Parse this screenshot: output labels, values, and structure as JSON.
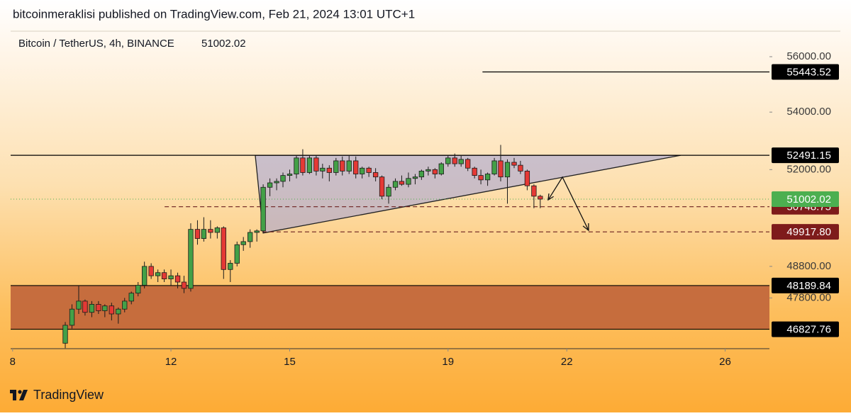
{
  "chart_data": {
    "type": "candlestick",
    "published": "bitcoinmeraklisi published on TradingView.com, Feb 21, 2024 13:01 UTC+1",
    "title": "Bitcoin / TetherUS, 4h, BINANCE",
    "brand": "TradingView",
    "log_scale": true,
    "up_color": "#43a047",
    "down_color": "#e53935",
    "xlim": [
      7.95,
      27.12
    ],
    "xticks": [
      8,
      12,
      15,
      19,
      22,
      26
    ],
    "ylim": [
      46234,
      56919
    ],
    "yticks": [
      {
        "value": 56000,
        "label": "56000.00"
      },
      {
        "value": 54000,
        "label": "54000.00"
      },
      {
        "value": 52000,
        "label": "52000.00"
      },
      {
        "value": 48800,
        "label": "48800.00"
      },
      {
        "value": 47800,
        "label": "47800.00"
      }
    ],
    "x": [
      9.33,
      9.5,
      9.67,
      9.83,
      10,
      10.17,
      10.33,
      10.5,
      10.67,
      10.83,
      11,
      11.17,
      11.33,
      11.5,
      11.67,
      11.83,
      12,
      12.17,
      12.33,
      12.5,
      12.67,
      12.83,
      13,
      13.17,
      13.33,
      13.5,
      13.67,
      13.83,
      14,
      14.17,
      14.33,
      14.5,
      14.67,
      14.83,
      15,
      15.17,
      15.33,
      15.5,
      15.67,
      15.83,
      16,
      16.17,
      16.33,
      16.5,
      16.67,
      16.83,
      17,
      17.17,
      17.33,
      17.5,
      17.67,
      17.83,
      18,
      18.17,
      18.33,
      18.5,
      18.67,
      18.83,
      19,
      19.17,
      19.33,
      19.5,
      19.67,
      19.83,
      20,
      20.17,
      20.33,
      20.5,
      20.67,
      20.83,
      21,
      21.17,
      21.33
    ],
    "open": [
      46400,
      46950,
      47450,
      47700,
      47350,
      47600,
      47400,
      47550,
      47300,
      47450,
      47700,
      47950,
      48200,
      48800,
      48500,
      48600,
      48400,
      48500,
      48300,
      48100,
      50000,
      49700,
      50000,
      49900,
      50050,
      48700,
      48900,
      49500,
      49600,
      49900,
      49950,
      51400,
      51550,
      51600,
      51800,
      51850,
      52400,
      51900,
      52400,
      51950,
      52050,
      51900,
      52300,
      51950,
      52300,
      51850,
      52050,
      51900,
      51750,
      51100,
      51400,
      51600,
      51500,
      51700,
      51750,
      51950,
      52000,
      51850,
      52200,
      52400,
      52200,
      52350,
      52050,
      51800,
      51650,
      51850,
      52300,
      51750,
      52250,
      52150,
      51950,
      51450,
      51100
    ],
    "high": [
      47050,
      47600,
      48200,
      47750,
      47700,
      47700,
      47600,
      47650,
      47500,
      47800,
      48000,
      48300,
      48950,
      48900,
      48700,
      48700,
      48700,
      48600,
      48500,
      50200,
      50300,
      50400,
      50300,
      50100,
      50100,
      49000,
      49600,
      49750,
      50000,
      50000,
      51500,
      51700,
      51700,
      51900,
      52000,
      52500,
      52700,
      52500,
      52500,
      52200,
      52150,
      52400,
      52450,
      52500,
      52450,
      52100,
      52100,
      52050,
      51800,
      51500,
      51700,
      51800,
      51900,
      51850,
      52000,
      52100,
      52050,
      52250,
      52500,
      52550,
      52500,
      52400,
      52100,
      52000,
      51900,
      52400,
      52850,
      52350,
      52400,
      52300,
      52000,
      51500,
      51150
    ],
    "low": [
      46250,
      46850,
      47300,
      47250,
      47200,
      47300,
      47200,
      47100,
      47000,
      47350,
      47600,
      47850,
      48100,
      48400,
      48300,
      48300,
      48200,
      48100,
      47950,
      48000,
      49500,
      49600,
      49700,
      49700,
      48400,
      48300,
      48800,
      49300,
      49400,
      49600,
      49900,
      51100,
      51300,
      51400,
      51600,
      51700,
      51800,
      51850,
      51800,
      51700,
      51600,
      51800,
      51800,
      51850,
      51700,
      51700,
      51750,
      51600,
      51000,
      50850,
      51300,
      51450,
      51400,
      51500,
      51650,
      51800,
      51700,
      51800,
      52100,
      52100,
      52100,
      51950,
      51700,
      51500,
      51450,
      51800,
      51600,
      50850,
      52050,
      51850,
      51300,
      50700,
      50700
    ],
    "close": [
      46950,
      47450,
      47700,
      47350,
      47600,
      47400,
      47550,
      47300,
      47450,
      47700,
      47950,
      48200,
      48800,
      48500,
      48600,
      48400,
      48500,
      48300,
      48100,
      50000,
      49700,
      50000,
      49900,
      50050,
      48700,
      48900,
      49500,
      49600,
      49900,
      49950,
      51400,
      51550,
      51600,
      51800,
      51850,
      52400,
      51900,
      52400,
      51950,
      52050,
      51900,
      52300,
      51950,
      52300,
      51850,
      52050,
      51900,
      51750,
      51100,
      51400,
      51600,
      51500,
      51700,
      51750,
      51950,
      52000,
      51850,
      52200,
      52400,
      52200,
      52350,
      52050,
      51800,
      51650,
      51850,
      52300,
      51750,
      52250,
      52150,
      51950,
      51450,
      51100,
      51002.02
    ],
    "last_color": "#4caf50",
    "levels": [
      {
        "value": 55443.52,
        "style": "solid",
        "box": "#000000",
        "x0": 19.87
      },
      {
        "value": 52491.15,
        "style": "solid",
        "box": "#000000"
      },
      {
        "value": 50748.75,
        "style": "dashed",
        "box": "#7e1b1b",
        "x0": 11.84
      },
      {
        "value": 49917.8,
        "label": "49917.80",
        "style": "dashed",
        "box": "#7e1b1b",
        "x0": 14.13
      },
      {
        "value": 48189.84,
        "style": "solid",
        "box": "#000000",
        "zone": true
      },
      {
        "value": 46827.76,
        "style": "solid",
        "box": "#000000",
        "zone": true
      }
    ],
    "zone_color": "#c0643a",
    "triangle": {
      "x": [
        14.13,
        24.88,
        14.33
      ],
      "y": [
        52491,
        52491,
        49880
      ]
    },
    "arrow": {
      "x": [
        21.53,
        21.89,
        22.55
      ],
      "y": [
        50977,
        51744,
        49968
      ]
    }
  }
}
